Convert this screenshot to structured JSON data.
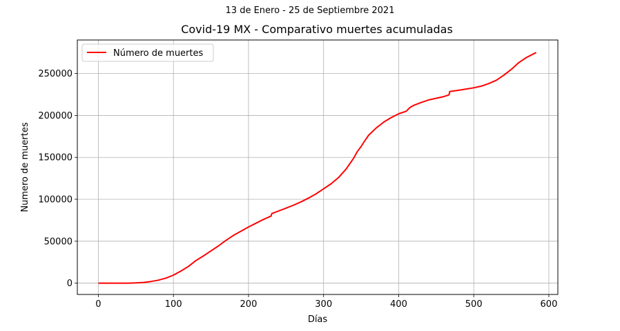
{
  "figure": {
    "suptitle": "13 de Enero - 25 de Septiembre 2021"
  },
  "chart_data": {
    "type": "line",
    "title": "Covid-19 MX - Comparativo muertes acumuladas",
    "xlabel": "Días",
    "ylabel": "Numero de muertes",
    "xlim": [
      -28,
      612
    ],
    "ylim": [
      -13500,
      290000
    ],
    "xticks": [
      0,
      100,
      200,
      300,
      400,
      500,
      600
    ],
    "yticks": [
      0,
      50000,
      100000,
      150000,
      200000,
      250000
    ],
    "grid": true,
    "legend_position": "top-left",
    "series": [
      {
        "name": "Número de muertes",
        "color": "#ff0000",
        "points": [
          [
            0,
            0
          ],
          [
            20,
            0
          ],
          [
            40,
            0
          ],
          [
            50,
            300
          ],
          [
            60,
            800
          ],
          [
            70,
            2000
          ],
          [
            80,
            3500
          ],
          [
            90,
            6000
          ],
          [
            100,
            9500
          ],
          [
            105,
            12000
          ],
          [
            110,
            14500
          ],
          [
            120,
            20000
          ],
          [
            130,
            27000
          ],
          [
            140,
            32500
          ],
          [
            150,
            38500
          ],
          [
            160,
            44500
          ],
          [
            170,
            51000
          ],
          [
            180,
            57000
          ],
          [
            190,
            62000
          ],
          [
            200,
            67000
          ],
          [
            210,
            71500
          ],
          [
            220,
            76000
          ],
          [
            230,
            80000
          ],
          [
            231,
            83000
          ],
          [
            240,
            86000
          ],
          [
            250,
            89500
          ],
          [
            260,
            93000
          ],
          [
            270,
            97000
          ],
          [
            280,
            101500
          ],
          [
            290,
            106500
          ],
          [
            300,
            112500
          ],
          [
            310,
            118500
          ],
          [
            320,
            126000
          ],
          [
            330,
            136000
          ],
          [
            340,
            149000
          ],
          [
            345,
            157000
          ],
          [
            350,
            163000
          ],
          [
            355,
            170000
          ],
          [
            360,
            176500
          ],
          [
            370,
            185000
          ],
          [
            380,
            192000
          ],
          [
            390,
            197500
          ],
          [
            400,
            202000
          ],
          [
            410,
            205000
          ],
          [
            415,
            209500
          ],
          [
            420,
            212000
          ],
          [
            430,
            215500
          ],
          [
            440,
            218500
          ],
          [
            450,
            220500
          ],
          [
            460,
            222500
          ],
          [
            467,
            224500
          ],
          [
            468,
            228500
          ],
          [
            480,
            230000
          ],
          [
            490,
            231500
          ],
          [
            500,
            233000
          ],
          [
            510,
            235000
          ],
          [
            520,
            238000
          ],
          [
            530,
            242000
          ],
          [
            540,
            248000
          ],
          [
            550,
            255000
          ],
          [
            560,
            263000
          ],
          [
            570,
            269000
          ],
          [
            583,
            275000
          ]
        ]
      }
    ]
  }
}
